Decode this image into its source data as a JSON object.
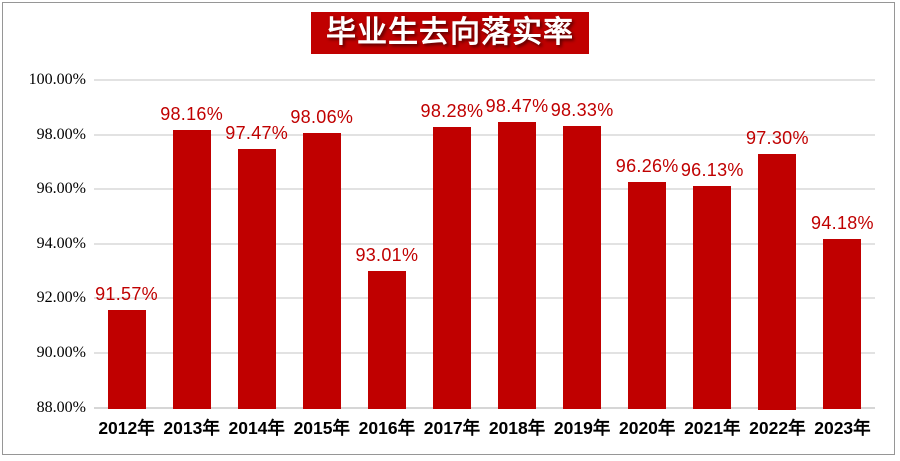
{
  "frame": {
    "border_color": "#969696",
    "background": "#ffffff"
  },
  "chart_data": {
    "type": "bar",
    "title": "毕业生去向落实率",
    "categories": [
      "2012年",
      "2013年",
      "2014年",
      "2015年",
      "2016年",
      "2017年",
      "2018年",
      "2019年",
      "2020年",
      "2021年",
      "2022年",
      "2023年"
    ],
    "values": [
      91.57,
      98.16,
      97.47,
      98.06,
      93.01,
      98.28,
      98.47,
      98.33,
      96.26,
      96.13,
      97.3,
      94.18
    ],
    "data_labels": [
      "91.57%",
      "98.16%",
      "97.47%",
      "98.06%",
      "93.01%",
      "98.28%",
      "98.47%",
      "98.33%",
      "96.26%",
      "96.13%",
      "97.30%",
      "94.18%"
    ],
    "xlabel": "",
    "ylabel": "",
    "ylim": [
      88,
      100
    ],
    "ytick_step": 2,
    "yticks": [
      {
        "value": 100,
        "label": "100.00%"
      },
      {
        "value": 98,
        "label": "98.00%"
      },
      {
        "value": 96,
        "label": "96.00%"
      },
      {
        "value": 94,
        "label": "94.00%"
      },
      {
        "value": 92,
        "label": "92.00%"
      },
      {
        "value": 90,
        "label": "90.00%"
      },
      {
        "value": 88,
        "label": "88.00%"
      }
    ],
    "grid": true,
    "legend": "none",
    "colors": {
      "bar": "#c00000",
      "data_label": "#c00000",
      "title_bg": "#c00000",
      "title_text": "#ffffff",
      "gridline": "#e2e2e2",
      "axis_line": "#d6d6d6",
      "tick_text": "#000000"
    }
  }
}
